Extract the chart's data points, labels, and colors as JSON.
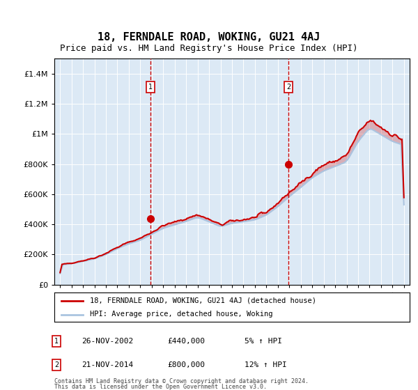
{
  "title": "18, FERNDALE ROAD, WOKING, GU21 4AJ",
  "subtitle": "Price paid vs. HM Land Registry's House Price Index (HPI)",
  "hpi_label": "HPI: Average price, detached house, Woking",
  "property_label": "18, FERNDALE ROAD, WOKING, GU21 4AJ (detached house)",
  "footnote1": "Contains HM Land Registry data © Crown copyright and database right 2024.",
  "footnote2": "This data is licensed under the Open Government Licence v3.0.",
  "transaction1_date": "26-NOV-2002",
  "transaction1_price": 440000,
  "transaction1_pct": "5% ↑ HPI",
  "transaction2_date": "21-NOV-2014",
  "transaction2_price": 800000,
  "transaction2_pct": "12% ↑ HPI",
  "ylim": [
    0,
    1500000
  ],
  "yticks": [
    0,
    200000,
    400000,
    600000,
    800000,
    1000000,
    1200000,
    1400000
  ],
  "background_color": "#dce9f5",
  "hpi_color": "#aac4e0",
  "property_color": "#cc0000",
  "vline_color": "#cc0000",
  "marker_color": "#cc0000",
  "title_fontsize": 11,
  "subtitle_fontsize": 9,
  "hpi_year_vals": [
    130000,
    140000,
    155000,
    172000,
    200000,
    240000,
    272000,
    295000,
    335000,
    375000,
    398000,
    420000,
    448000,
    418000,
    385000,
    408000,
    418000,
    430000,
    462000,
    518000,
    585000,
    645000,
    710000,
    755000,
    785000,
    815000,
    950000,
    1040000,
    995000,
    950000,
    925000
  ],
  "prop_year_vals": [
    132000,
    144000,
    160000,
    178000,
    208000,
    248000,
    282000,
    308000,
    348000,
    392000,
    415000,
    438000,
    465000,
    432000,
    395000,
    422000,
    432000,
    445000,
    478000,
    542000,
    612000,
    672000,
    740000,
    795000,
    820000,
    855000,
    1000000,
    1090000,
    1045000,
    995000,
    960000
  ]
}
